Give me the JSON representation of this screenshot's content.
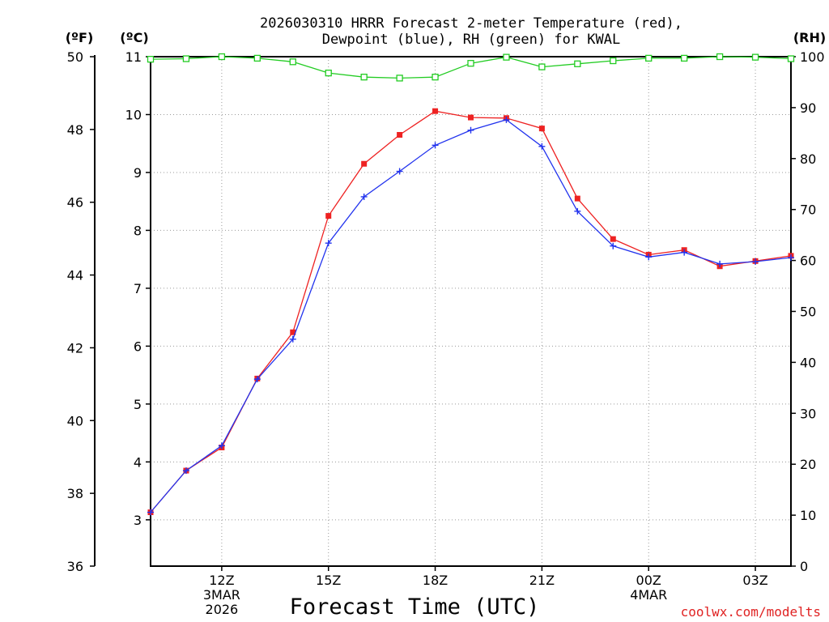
{
  "chart_data": {
    "type": "line",
    "title_line1": "2026030310 HRRR Forecast 2-meter Temperature (red),",
    "title_line2": "Dewpoint (blue), RH (green) for KWAL",
    "xlabel": "Forecast Time (UTC)",
    "credit": "coolwx.com/modelts",
    "units": {
      "fahrenheit": "(ºF)",
      "celsius": "(ºC)",
      "rh": "(RH)"
    },
    "x_hours": [
      10,
      11,
      12,
      13,
      14,
      15,
      16,
      17,
      18,
      19,
      20,
      21,
      22,
      23,
      24,
      25,
      26,
      27,
      28
    ],
    "x_range": [
      10,
      28
    ],
    "x_ticks": [
      {
        "hour": 12,
        "lines": [
          "12Z",
          "3MAR",
          "2026"
        ]
      },
      {
        "hour": 15,
        "lines": [
          "15Z"
        ]
      },
      {
        "hour": 18,
        "lines": [
          "18Z"
        ]
      },
      {
        "hour": 21,
        "lines": [
          "21Z"
        ]
      },
      {
        "hour": 24,
        "lines": [
          "00Z",
          "4MAR"
        ]
      },
      {
        "hour": 27,
        "lines": [
          "03Z"
        ]
      }
    ],
    "celsius_axis": {
      "range": [
        2.2,
        11
      ],
      "ticks": [
        "3",
        "4",
        "5",
        "6",
        "7",
        "8",
        "9",
        "10",
        "11"
      ]
    },
    "fahrenheit_axis": {
      "range": [
        36,
        50
      ],
      "ticks": [
        "36",
        "38",
        "40",
        "42",
        "44",
        "46",
        "48",
        "50"
      ]
    },
    "rh_axis": {
      "range": [
        0,
        100
      ],
      "ticks": [
        "0",
        "10",
        "20",
        "30",
        "40",
        "50",
        "60",
        "70",
        "80",
        "90",
        "100"
      ]
    },
    "series": [
      {
        "name": "Temperature",
        "units": "C",
        "color": "#ee2222",
        "marker": "square",
        "values": [
          3.13,
          3.85,
          4.25,
          5.44,
          6.24,
          8.25,
          9.15,
          9.65,
          10.06,
          9.95,
          9.94,
          9.76,
          8.55,
          7.85,
          7.58,
          7.66,
          7.38,
          7.47,
          7.56
        ]
      },
      {
        "name": "Dewpoint",
        "units": "C",
        "color": "#2233ee",
        "marker": "plus",
        "values": [
          3.13,
          3.85,
          4.28,
          5.43,
          6.12,
          7.78,
          8.58,
          9.02,
          9.47,
          9.73,
          9.91,
          9.45,
          8.33,
          7.73,
          7.54,
          7.62,
          7.42,
          7.46,
          7.53
        ]
      },
      {
        "name": "RH",
        "units": "%",
        "color": "#22cc22",
        "marker": "open-square",
        "values": [
          99.5,
          99.6,
          100,
          99.7,
          99.0,
          96.8,
          96.0,
          95.8,
          96.0,
          98.7,
          99.9,
          98.0,
          98.6,
          99.2,
          99.7,
          99.7,
          100,
          99.9,
          99.6
        ]
      }
    ],
    "grid": true
  }
}
